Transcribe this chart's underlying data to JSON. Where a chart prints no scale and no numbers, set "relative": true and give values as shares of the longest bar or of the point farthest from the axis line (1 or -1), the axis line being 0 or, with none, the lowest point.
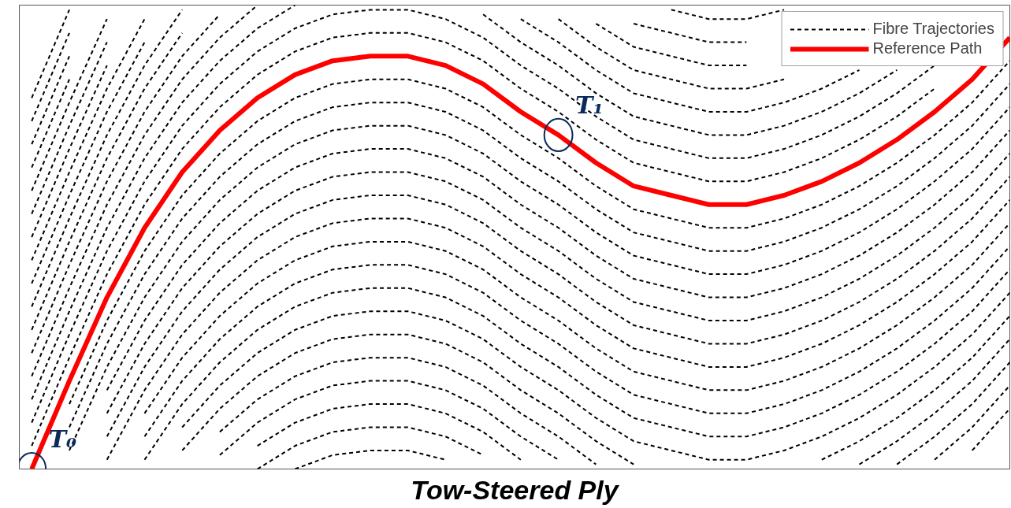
{
  "chart_data": {
    "type": "line",
    "relative": true,
    "xlabel": "Tow-Steered Ply",
    "legend": "top right",
    "grid": false,
    "categories": [
      null,
      null,
      null,
      null,
      null,
      null,
      null,
      null,
      null,
      null,
      null,
      null,
      null,
      null,
      null,
      null,
      null,
      null,
      null,
      null,
      null,
      null,
      null,
      null,
      null,
      null,
      null
    ],
    "annotations": [
      "T₀",
      "T₁"
    ],
    "series": [
      {
        "name": "Fibre Trajectories",
        "color": "#000000",
        "line_style": "dashed",
        "values": [
          0.8,
          0.99,
          null,
          null,
          null,
          null,
          null,
          null,
          null,
          null,
          null,
          null,
          null,
          null,
          null,
          null,
          null,
          null,
          null,
          null,
          null,
          null,
          null,
          null,
          null,
          null,
          null
        ]
      },
      {
        "color": "#000000",
        "line_style": "dashed",
        "values": [
          0.75,
          0.94,
          null,
          null,
          null,
          null,
          null,
          null,
          null,
          null,
          null,
          null,
          null,
          null,
          null,
          null,
          null,
          null,
          null,
          null,
          null,
          null,
          null,
          null,
          null,
          null,
          null
        ]
      },
      {
        "color": "#000000",
        "line_style": "dashed",
        "values": [
          0.7,
          0.89,
          null,
          null,
          null,
          null,
          null,
          null,
          null,
          null,
          null,
          null,
          null,
          null,
          null,
          null,
          null,
          null,
          null,
          null,
          null,
          null,
          null,
          null,
          null,
          null,
          null
        ]
      },
      {
        "color": "#000000",
        "line_style": "dashed",
        "values": [
          0.65,
          0.84,
          null,
          null,
          null,
          null,
          null,
          null,
          null,
          null,
          null,
          null,
          null,
          null,
          null,
          null,
          null,
          null,
          null,
          null,
          null,
          null,
          null,
          null,
          null,
          null,
          null
        ]
      },
      {
        "color": "#000000",
        "line_style": "dashed",
        "values": [
          0.6,
          0.79,
          0.97,
          null,
          null,
          null,
          null,
          null,
          null,
          null,
          null,
          null,
          null,
          null,
          null,
          null,
          null,
          null,
          null,
          null,
          null,
          null,
          null,
          null,
          null,
          null,
          null
        ]
      },
      {
        "color": "#000000",
        "line_style": "dashed",
        "values": [
          0.55,
          0.74,
          0.92,
          null,
          null,
          null,
          null,
          null,
          null,
          null,
          null,
          null,
          null,
          null,
          null,
          null,
          null,
          null,
          null,
          null,
          null,
          null,
          null,
          null,
          null,
          null,
          null
        ]
      },
      {
        "color": "#000000",
        "line_style": "dashed",
        "values": [
          0.5,
          0.69,
          0.87,
          null,
          null,
          null,
          null,
          null,
          null,
          null,
          null,
          null,
          null,
          null,
          null,
          null,
          null,
          null,
          null,
          null,
          null,
          null,
          null,
          null,
          null,
          null,
          null
        ]
      },
      {
        "color": "#000000",
        "line_style": "dashed",
        "values": [
          0.45,
          0.64,
          0.82,
          0.97,
          null,
          null,
          null,
          null,
          null,
          null,
          null,
          null,
          null,
          null,
          null,
          null,
          null,
          null,
          null,
          null,
          null,
          null,
          null,
          null,
          null,
          null,
          null
        ]
      },
      {
        "color": "#000000",
        "line_style": "dashed",
        "values": [
          0.4,
          0.59,
          0.77,
          0.92,
          null,
          null,
          null,
          null,
          null,
          null,
          null,
          null,
          null,
          null,
          null,
          null,
          null,
          0.99,
          0.97,
          0.97,
          0.99,
          null,
          null,
          null,
          null,
          null,
          null
        ]
      },
      {
        "color": "#000000",
        "line_style": "dashed",
        "values": [
          0.35,
          0.54,
          0.72,
          0.87,
          0.99,
          null,
          null,
          null,
          null,
          null,
          null,
          null,
          null,
          null,
          null,
          null,
          0.96,
          0.94,
          0.92,
          0.92,
          null,
          null,
          null,
          null,
          null,
          null,
          null
        ]
      },
      {
        "color": "#000000",
        "line_style": "dashed",
        "values": [
          0.3,
          0.49,
          0.67,
          0.82,
          0.94,
          null,
          null,
          null,
          null,
          null,
          null,
          null,
          null,
          null,
          null,
          0.96,
          0.91,
          0.89,
          0.87,
          0.87,
          null,
          null,
          null,
          null,
          null,
          null,
          null
        ]
      },
      {
        "color": "#000000",
        "line_style": "dashed",
        "values": [
          0.25,
          0.44,
          0.62,
          0.77,
          0.89,
          0.98,
          null,
          null,
          null,
          null,
          null,
          null,
          null,
          null,
          0.97,
          0.91,
          0.86,
          0.84,
          0.82,
          0.82,
          0.84,
          null,
          null,
          null,
          null,
          null,
          null
        ]
      },
      {
        "color": "#000000",
        "line_style": "dashed",
        "values": [
          0.2,
          0.39,
          0.57,
          0.72,
          0.84,
          0.93,
          1.0,
          null,
          null,
          null,
          null,
          null,
          null,
          0.97,
          0.92,
          0.86,
          0.81,
          0.79,
          0.77,
          0.77,
          0.79,
          0.82,
          0.86,
          null,
          null,
          null,
          null
        ]
      },
      {
        "color": "#000000",
        "line_style": "dashed",
        "values": [
          0.15,
          0.34,
          0.52,
          0.67,
          0.79,
          0.88,
          0.95,
          1.0,
          null,
          null,
          null,
          null,
          0.98,
          0.92,
          0.87,
          0.81,
          0.76,
          0.74,
          0.72,
          0.72,
          0.74,
          0.77,
          0.81,
          0.86,
          null,
          null,
          null
        ]
      },
      {
        "color": "#000000",
        "line_style": "dashed",
        "values": [
          0.1,
          0.29,
          0.47,
          0.62,
          0.74,
          0.83,
          0.9,
          0.95,
          0.98,
          0.99,
          0.99,
          0.97,
          0.93,
          0.87,
          0.82,
          0.76,
          0.71,
          0.69,
          0.67,
          0.67,
          0.69,
          0.72,
          0.76,
          0.81,
          0.87,
          null,
          null
        ]
      },
      {
        "color": "#000000",
        "line_style": "dashed",
        "values": [
          0.05,
          0.24,
          0.42,
          0.57,
          0.69,
          0.78,
          0.85,
          0.9,
          0.93,
          0.94,
          0.94,
          0.92,
          0.88,
          0.82,
          0.77,
          0.71,
          0.66,
          0.64,
          0.62,
          0.62,
          0.64,
          0.67,
          0.71,
          0.76,
          0.82,
          null,
          null
        ]
      },
      {
        "color": "#000000",
        "line_style": "dashed",
        "values": [
          null,
          0.14,
          0.32,
          0.47,
          0.59,
          0.68,
          0.75,
          0.8,
          0.83,
          0.84,
          0.84,
          0.82,
          0.78,
          0.72,
          0.67,
          0.61,
          0.56,
          0.54,
          0.52,
          0.52,
          0.54,
          0.57,
          0.61,
          0.66,
          0.72,
          0.79,
          0.88
        ]
      },
      {
        "color": "#000000",
        "line_style": "dashed",
        "values": [
          null,
          0.09,
          0.27,
          0.42,
          0.54,
          0.63,
          0.7,
          0.75,
          0.78,
          0.79,
          0.79,
          0.77,
          0.73,
          0.67,
          0.62,
          0.56,
          0.51,
          0.49,
          0.47,
          0.47,
          0.49,
          0.52,
          0.56,
          0.61,
          0.67,
          0.74,
          0.83
        ]
      },
      {
        "color": "#000000",
        "line_style": "dashed",
        "values": [
          null,
          0.04,
          0.22,
          0.37,
          0.49,
          0.58,
          0.65,
          0.7,
          0.73,
          0.74,
          0.74,
          0.72,
          0.68,
          0.62,
          0.57,
          0.51,
          0.46,
          0.44,
          0.42,
          0.42,
          0.44,
          0.47,
          0.51,
          0.56,
          0.62,
          0.69,
          0.78
        ]
      },
      {
        "color": "#000000",
        "line_style": "dashed",
        "values": [
          null,
          null,
          0.17,
          0.32,
          0.44,
          0.53,
          0.6,
          0.65,
          0.68,
          0.69,
          0.69,
          0.67,
          0.63,
          0.57,
          0.52,
          0.46,
          0.41,
          0.39,
          0.37,
          0.37,
          0.39,
          0.42,
          0.46,
          0.51,
          0.57,
          0.64,
          0.73
        ]
      },
      {
        "color": "#000000",
        "line_style": "dashed",
        "values": [
          null,
          null,
          0.12,
          0.27,
          0.39,
          0.48,
          0.55,
          0.6,
          0.63,
          0.64,
          0.64,
          0.62,
          0.58,
          0.52,
          0.47,
          0.41,
          0.36,
          0.34,
          0.32,
          0.32,
          0.34,
          0.37,
          0.41,
          0.46,
          0.52,
          0.59,
          0.68
        ]
      },
      {
        "color": "#000000",
        "line_style": "dashed",
        "values": [
          null,
          null,
          0.07,
          0.22,
          0.34,
          0.43,
          0.5,
          0.55,
          0.58,
          0.59,
          0.59,
          0.57,
          0.53,
          0.47,
          0.42,
          0.36,
          0.31,
          0.29,
          0.27,
          0.27,
          0.29,
          0.32,
          0.36,
          0.41,
          0.47,
          0.54,
          0.63
        ]
      },
      {
        "color": "#000000",
        "line_style": "dashed",
        "values": [
          null,
          null,
          0.02,
          0.17,
          0.29,
          0.38,
          0.45,
          0.5,
          0.53,
          0.54,
          0.54,
          0.52,
          0.48,
          0.42,
          0.37,
          0.31,
          0.26,
          0.24,
          0.22,
          0.22,
          0.24,
          0.27,
          0.31,
          0.36,
          0.42,
          0.49,
          0.58
        ]
      },
      {
        "color": "#000000",
        "line_style": "dashed",
        "values": [
          null,
          null,
          null,
          0.12,
          0.24,
          0.33,
          0.4,
          0.45,
          0.48,
          0.49,
          0.49,
          0.47,
          0.43,
          0.37,
          0.32,
          0.26,
          0.21,
          0.19,
          0.17,
          0.17,
          0.19,
          0.22,
          0.26,
          0.31,
          0.37,
          0.44,
          0.53
        ]
      },
      {
        "color": "#000000",
        "line_style": "dashed",
        "values": [
          null,
          null,
          null,
          0.07,
          0.19,
          0.28,
          0.35,
          0.4,
          0.43,
          0.44,
          0.44,
          0.42,
          0.38,
          0.32,
          0.27,
          0.21,
          0.16,
          0.14,
          0.12,
          0.12,
          0.14,
          0.17,
          0.21,
          0.26,
          0.32,
          0.39,
          0.48
        ]
      },
      {
        "color": "#000000",
        "line_style": "dashed",
        "values": [
          null,
          null,
          null,
          0.02,
          0.14,
          0.23,
          0.3,
          0.35,
          0.38,
          0.39,
          0.39,
          0.37,
          0.33,
          0.27,
          0.22,
          0.16,
          0.11,
          0.09,
          0.07,
          0.07,
          0.09,
          0.12,
          0.16,
          0.21,
          0.27,
          0.34,
          0.43
        ]
      },
      {
        "color": "#000000",
        "line_style": "dashed",
        "values": [
          null,
          null,
          null,
          null,
          0.09,
          0.18,
          0.25,
          0.3,
          0.33,
          0.34,
          0.34,
          0.32,
          0.28,
          0.22,
          0.17,
          0.11,
          0.06,
          0.04,
          0.02,
          0.02,
          0.04,
          0.07,
          0.11,
          0.16,
          0.22,
          0.29,
          0.38
        ]
      },
      {
        "color": "#000000",
        "line_style": "dashed",
        "values": [
          null,
          null,
          null,
          null,
          0.04,
          0.13,
          0.2,
          0.25,
          0.28,
          0.29,
          0.29,
          0.27,
          0.23,
          0.17,
          0.12,
          0.06,
          0.01,
          null,
          null,
          null,
          null,
          0.02,
          0.06,
          0.11,
          0.17,
          0.24,
          0.33
        ]
      },
      {
        "color": "#000000",
        "line_style": "dashed",
        "values": [
          null,
          null,
          null,
          null,
          null,
          0.08,
          0.15,
          0.2,
          0.23,
          0.24,
          0.24,
          0.22,
          0.18,
          0.12,
          0.07,
          0.01,
          null,
          null,
          null,
          null,
          null,
          null,
          0.01,
          0.06,
          0.12,
          0.19,
          0.28
        ]
      },
      {
        "color": "#000000",
        "line_style": "dashed",
        "values": [
          null,
          null,
          null,
          null,
          null,
          0.03,
          0.1,
          0.15,
          0.18,
          0.19,
          0.19,
          0.17,
          0.13,
          0.07,
          0.02,
          null,
          null,
          null,
          null,
          null,
          null,
          null,
          null,
          0.01,
          0.07,
          0.14,
          0.23
        ]
      },
      {
        "color": "#000000",
        "line_style": "dashed",
        "values": [
          null,
          null,
          null,
          null,
          null,
          null,
          0.05,
          0.1,
          0.13,
          0.14,
          0.14,
          0.12,
          0.08,
          0.02,
          null,
          null,
          null,
          null,
          null,
          null,
          null,
          null,
          null,
          null,
          0.02,
          0.09,
          0.18
        ]
      },
      {
        "color": "#000000",
        "line_style": "dashed",
        "values": [
          null,
          null,
          null,
          null,
          null,
          null,
          0.0,
          0.05,
          0.08,
          0.09,
          0.09,
          0.07,
          0.03,
          null,
          null,
          null,
          null,
          null,
          null,
          null,
          null,
          null,
          null,
          null,
          null,
          0.04,
          0.13
        ]
      },
      {
        "color": "#000000",
        "line_style": "dashed",
        "values": [
          null,
          null,
          null,
          null,
          null,
          null,
          null,
          0.0,
          0.03,
          0.04,
          0.04,
          0.02,
          null,
          null,
          null,
          null,
          null,
          null,
          null,
          null,
          null,
          null,
          null,
          null,
          null,
          null,
          null
        ]
      },
      {
        "name": "Reference Path",
        "color": "#ff0000",
        "line_style": "solid",
        "values": [
          0.0,
          0.19,
          0.37,
          0.52,
          0.64,
          0.73,
          0.8,
          0.85,
          0.88,
          0.89,
          0.89,
          0.87,
          0.83,
          0.77,
          0.72,
          0.66,
          0.61,
          0.59,
          0.57,
          0.57,
          0.59,
          0.62,
          0.66,
          0.71,
          0.77,
          0.84,
          0.93
        ]
      }
    ]
  }
}
